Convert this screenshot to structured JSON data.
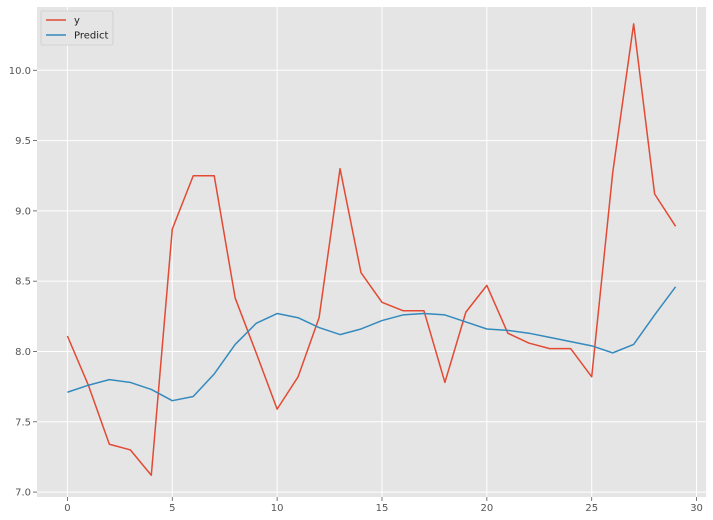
{
  "chart_data": {
    "type": "line",
    "title": "",
    "xlabel": "",
    "ylabel": "",
    "xlim": [
      -1.45,
      30.45
    ],
    "ylim": [
      6.965,
      10.45
    ],
    "grid": true,
    "legend_position": "top-left",
    "x": [
      0,
      1,
      2,
      3,
      4,
      5,
      6,
      7,
      8,
      9,
      10,
      11,
      12,
      13,
      14,
      15,
      16,
      17,
      18,
      19,
      20,
      21,
      22,
      23,
      24,
      25,
      26,
      27,
      28,
      29
    ],
    "x_ticks": [
      0,
      5,
      10,
      15,
      20,
      25,
      30
    ],
    "x_tick_labels": [
      "0",
      "5",
      "10",
      "15",
      "20",
      "25",
      "30"
    ],
    "y_ticks": [
      7.0,
      7.5,
      8.0,
      8.5,
      9.0,
      9.5,
      10.0
    ],
    "y_tick_labels": [
      "7.0",
      "7.5",
      "8.0",
      "8.5",
      "9.0",
      "9.5",
      "10.0"
    ],
    "series": [
      {
        "name": "y",
        "color": "#e24a33",
        "values": [
          8.11,
          7.76,
          7.34,
          7.3,
          7.12,
          8.87,
          9.25,
          9.25,
          8.38,
          7.99,
          7.59,
          7.82,
          8.24,
          9.3,
          8.56,
          8.35,
          8.29,
          8.29,
          7.78,
          8.28,
          8.47,
          8.13,
          8.06,
          8.02,
          8.02,
          7.82,
          9.27,
          10.33,
          9.12,
          8.89
        ]
      },
      {
        "name": "Predict",
        "color": "#348abd",
        "values": [
          7.71,
          7.76,
          7.8,
          7.78,
          7.73,
          7.65,
          7.68,
          7.84,
          8.05,
          8.2,
          8.27,
          8.24,
          8.17,
          8.12,
          8.16,
          8.22,
          8.26,
          8.27,
          8.26,
          8.21,
          8.16,
          8.15,
          8.13,
          8.1,
          8.07,
          8.04,
          7.99,
          8.05,
          8.26,
          8.46
        ]
      }
    ]
  }
}
